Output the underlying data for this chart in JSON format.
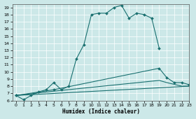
{
  "xlabel": "Humidex (Indice chaleur)",
  "bg_color": "#cce8e8",
  "grid_color": "#ffffff",
  "line_color": "#1a7070",
  "xlim": [
    -0.5,
    23
  ],
  "ylim": [
    6,
    19.5
  ],
  "yticks": [
    6,
    7,
    8,
    9,
    10,
    11,
    12,
    13,
    14,
    15,
    16,
    17,
    18,
    19
  ],
  "xticks": [
    0,
    1,
    2,
    3,
    4,
    5,
    6,
    7,
    8,
    9,
    10,
    11,
    12,
    13,
    14,
    15,
    16,
    17,
    18,
    19,
    20,
    21,
    22,
    23
  ],
  "line1_x": [
    0,
    1,
    2,
    3,
    4,
    5,
    6,
    7,
    8,
    9,
    10,
    11,
    12,
    13,
    14,
    15,
    16,
    17,
    18,
    19
  ],
  "line1_y": [
    6.7,
    6.1,
    6.7,
    7.2,
    7.5,
    8.5,
    7.5,
    8.0,
    11.8,
    13.8,
    18.0,
    18.2,
    18.2,
    19.0,
    19.3,
    17.5,
    18.2,
    18.0,
    17.5,
    13.3
  ],
  "line2_x": [
    0,
    5,
    19,
    20,
    21,
    22,
    23
  ],
  "line2_y": [
    6.7,
    7.5,
    10.5,
    9.2,
    8.5,
    8.5,
    8.2
  ],
  "line3_x": [
    0,
    23
  ],
  "line3_y": [
    6.7,
    8.0
  ],
  "line4_x": [
    0,
    5,
    19,
    20,
    22,
    23
  ],
  "line4_y": [
    6.7,
    7.3,
    8.8,
    8.5,
    8.0,
    8.0
  ],
  "marker_symbol": "D",
  "marker_size": 2.0,
  "linewidth": 0.8,
  "tick_fontsize": 4.5,
  "xlabel_fontsize": 5.5
}
